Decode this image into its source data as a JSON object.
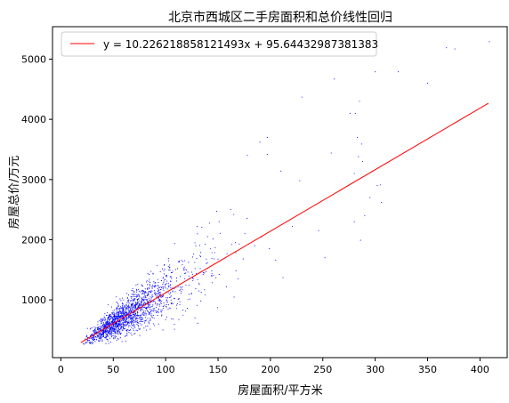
{
  "chart_data": {
    "type": "scatter",
    "title": "北京市西城区二手房面积和总价线性回归",
    "xlabel": "房屋面积/平方米",
    "ylabel": "房屋总价/万元",
    "xlim": [
      -8,
      426
    ],
    "ylim": [
      40,
      5540
    ],
    "xticks": [
      0,
      50,
      100,
      150,
      200,
      250,
      300,
      350,
      400
    ],
    "yticks": [
      1000,
      2000,
      3000,
      4000,
      5000
    ],
    "xtick_labels": [
      "0",
      "50",
      "100",
      "150",
      "200",
      "250",
      "300",
      "350",
      "400"
    ],
    "ytick_labels": [
      "1000",
      "2000",
      "3000",
      "4000",
      "5000"
    ],
    "legend_position": "top-left",
    "grid": false,
    "series": [
      {
        "kind": "scatter",
        "color": "#0000ff",
        "points": [
          [
            261,
            4670
          ],
          [
            230,
            4370
          ],
          [
            285,
            4300
          ],
          [
            300,
            4790
          ],
          [
            322,
            4790
          ],
          [
            350,
            4600
          ],
          [
            368,
            5190
          ],
          [
            376,
            5170
          ],
          [
            409,
            5290
          ],
          [
            197,
            3700
          ],
          [
            190,
            3620
          ],
          [
            178,
            3400
          ],
          [
            197,
            3420
          ],
          [
            210,
            3140
          ],
          [
            228,
            2980
          ],
          [
            258,
            3440
          ],
          [
            280,
            3100
          ],
          [
            284,
            3380
          ],
          [
            288,
            3300
          ],
          [
            287,
            3590
          ],
          [
            281,
            4100
          ],
          [
            283,
            3700
          ],
          [
            276,
            4100
          ],
          [
            305,
            2910
          ],
          [
            302,
            2900
          ],
          [
            295,
            2700
          ],
          [
            290,
            2400
          ],
          [
            280,
            2300
          ],
          [
            286,
            1990
          ],
          [
            306,
            2620
          ],
          [
            246,
            2150
          ],
          [
            252,
            1700
          ],
          [
            221,
            2220
          ],
          [
            212,
            1370
          ],
          [
            205,
            1660
          ],
          [
            191,
            2040
          ],
          [
            199,
            1850
          ],
          [
            165,
            2420
          ],
          [
            162,
            2500
          ],
          [
            151,
            2300
          ],
          [
            140,
            2050
          ],
          [
            125,
            1460
          ],
          [
            128,
            700
          ],
          [
            169,
            1350
          ],
          [
            158,
            1220
          ],
          [
            185,
            1900
          ],
          [
            174,
            1680
          ]
        ],
        "cluster": {
          "description_free": true,
          "count": 1800,
          "x_range": [
            20,
            180
          ],
          "slope": 10.8,
          "intercept": 60,
          "seed": 7
        }
      },
      {
        "kind": "line",
        "color": "#ff0000",
        "name": "y = 10.226218858121493x + 95.64432987381383",
        "slope": 10.226218858121493,
        "intercept": 95.64432987381383,
        "x_range": [
          19,
          408
        ]
      }
    ]
  }
}
